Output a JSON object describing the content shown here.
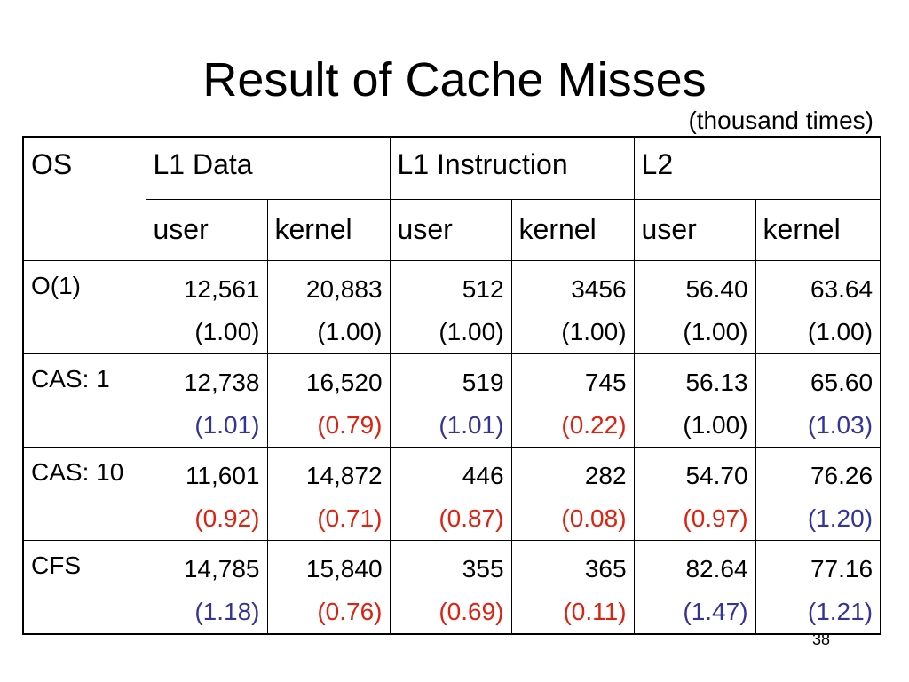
{
  "slide": {
    "title": "Result of Cache Misses",
    "unit_note": "(thousand times)",
    "page_number": "38"
  },
  "colors": {
    "higher_ratio": "#33339a",
    "lower_ratio": "#dd2211",
    "neutral_ratio": "#000000"
  },
  "table": {
    "headers": {
      "os": "OS",
      "groups": [
        "L1 Data",
        "L1 Instruction",
        "L2"
      ],
      "subcolumns": [
        "user",
        "kernel",
        "user",
        "kernel",
        "user",
        "kernel"
      ]
    },
    "rows": [
      {
        "os": "O(1)",
        "cells": [
          {
            "value": "12,561",
            "ratio": "(1.00)",
            "trend": "neutral"
          },
          {
            "value": "20,883",
            "ratio": "(1.00)",
            "trend": "neutral"
          },
          {
            "value": "512",
            "ratio": "(1.00)",
            "trend": "neutral"
          },
          {
            "value": "3456",
            "ratio": "(1.00)",
            "trend": "neutral"
          },
          {
            "value": "56.40",
            "ratio": "(1.00)",
            "trend": "neutral"
          },
          {
            "value": "63.64",
            "ratio": "(1.00)",
            "trend": "neutral"
          }
        ]
      },
      {
        "os": "CAS: 1",
        "cells": [
          {
            "value": "12,738",
            "ratio": "(1.01)",
            "trend": "higher"
          },
          {
            "value": "16,520",
            "ratio": "(0.79)",
            "trend": "lower"
          },
          {
            "value": "519",
            "ratio": "(1.01)",
            "trend": "higher"
          },
          {
            "value": "745",
            "ratio": "(0.22)",
            "trend": "lower"
          },
          {
            "value": "56.13",
            "ratio": "(1.00)",
            "trend": "neutral"
          },
          {
            "value": "65.60",
            "ratio": "(1.03)",
            "trend": "higher"
          }
        ]
      },
      {
        "os": "CAS: 10",
        "cells": [
          {
            "value": "11,601",
            "ratio": "(0.92)",
            "trend": "lower"
          },
          {
            "value": "14,872",
            "ratio": "(0.71)",
            "trend": "lower"
          },
          {
            "value": "446",
            "ratio": "(0.87)",
            "trend": "lower"
          },
          {
            "value": "282",
            "ratio": "(0.08)",
            "trend": "lower"
          },
          {
            "value": "54.70",
            "ratio": "(0.97)",
            "trend": "lower"
          },
          {
            "value": "76.26",
            "ratio": "(1.20)",
            "trend": "higher"
          }
        ]
      },
      {
        "os": "CFS",
        "cells": [
          {
            "value": "14,785",
            "ratio": "(1.18)",
            "trend": "higher"
          },
          {
            "value": "15,840",
            "ratio": "(0.76)",
            "trend": "lower"
          },
          {
            "value": "355",
            "ratio": "(0.69)",
            "trend": "lower"
          },
          {
            "value": "365",
            "ratio": "(0.11)",
            "trend": "lower"
          },
          {
            "value": "82.64",
            "ratio": "(1.47)",
            "trend": "higher"
          },
          {
            "value": "77.16",
            "ratio": "(1.21)",
            "trend": "higher"
          }
        ]
      }
    ]
  }
}
